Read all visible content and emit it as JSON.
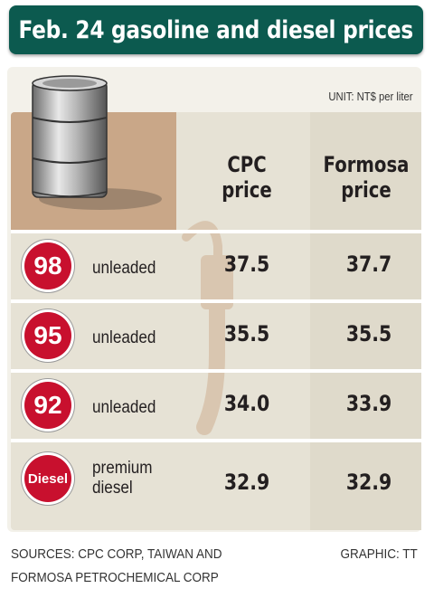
{
  "title": "Feb. 24 gasoline and diesel prices",
  "unit": "UNIT: NT$ per liter",
  "sources": [
    "SOURCES: CPC CORP, TAIWAN AND",
    "FORMOSA PETROCHEMICAL CORP"
  ],
  "graphic": "GRAPHIC: TT",
  "colors": {
    "title_bg": "#0c5a4f",
    "badge": "#c8102e",
    "panel": "#e6e2d5",
    "tan": "#c9a788"
  },
  "chart_data": {
    "type": "table",
    "columns": [
      "CPC price",
      "Formosa price"
    ],
    "column_heads": [
      [
        "CPC",
        "price"
      ],
      [
        "Formosa",
        "price"
      ]
    ],
    "rows": [
      {
        "badge": "98",
        "label": [
          "unleaded"
        ],
        "cpc": "37.5",
        "formosa": "37.7"
      },
      {
        "badge": "95",
        "label": [
          "unleaded"
        ],
        "cpc": "35.5",
        "formosa": "35.5"
      },
      {
        "badge": "92",
        "label": [
          "unleaded"
        ],
        "cpc": "34.0",
        "formosa": "33.9"
      },
      {
        "badge": "Diesel",
        "label": [
          "premium",
          "diesel"
        ],
        "cpc": "32.9",
        "formosa": "32.9"
      }
    ]
  }
}
